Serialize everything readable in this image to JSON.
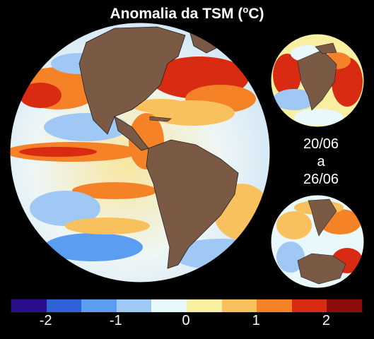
{
  "title": {
    "main": "Anomalia da TSM (",
    "unit_sup": "o",
    "unit_tail": "C)"
  },
  "period": {
    "start": "20/06",
    "sep": "a",
    "end": "26/06"
  },
  "colorbar": {
    "colors": [
      "#2a0f8c",
      "#2f62d6",
      "#5b9df0",
      "#9fc8f4",
      "#e9f8fb",
      "#f8efa0",
      "#f8c15e",
      "#f58227",
      "#d92b11",
      "#8c0d0d"
    ],
    "ticks": [
      "-2",
      "-1",
      "0",
      "1",
      "2"
    ]
  },
  "legend_value_ticks": [
    -2,
    -1,
    0,
    1,
    2
  ],
  "legend_value_range": [
    -2.5,
    2.5
  ]
}
